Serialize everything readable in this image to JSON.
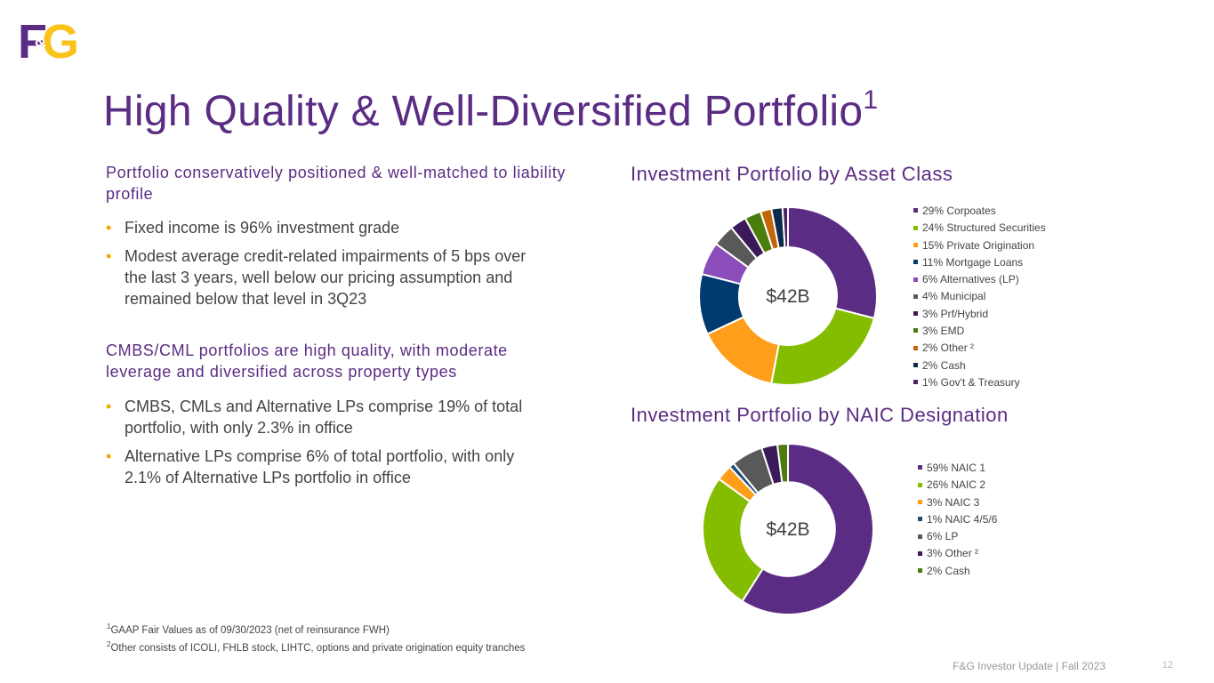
{
  "logo": {
    "text": "F&G",
    "left_letter": "F",
    "amp": "&",
    "right_letter": "G",
    "colors": {
      "purple": "#5B2C83",
      "gold": "#F9C31A"
    }
  },
  "title": {
    "text": "High Quality & Well-Diversified Portfolio",
    "sup": "1"
  },
  "left": {
    "section1": {
      "heading": "Portfolio conservatively positioned & well-matched to liability profile",
      "bullets": [
        "Fixed income is 96% investment grade",
        "Modest average credit-related impairments of 5 bps over the last 3 years, well below our pricing assumption and remained below that level in 3Q23"
      ]
    },
    "section2": {
      "heading": "CMBS/CML portfolios are high quality, with moderate leverage and diversified across property types",
      "bullets": [
        "CMBS, CMLs and Alternative LPs comprise 19% of total portfolio, with only 2.3% in office",
        "Alternative LPs comprise 6% of total portfolio, with only 2.1% of Alternative LPs portfolio in office"
      ]
    },
    "bullet_glyph": "•"
  },
  "chart_data": [
    {
      "type": "pie",
      "title": "Investment Portfolio by Asset Class",
      "center_label": "$42B",
      "categories": [
        "29% Corpoates",
        "24% Structured Securities",
        "15% Private Origination",
        "11% Mortgage Loans",
        "6% Alternatives (LP)",
        "4% Municipal",
        "3% Prf/Hybrid",
        "3% EMD",
        "2% Other ²",
        "2% Cash",
        "1% Gov't & Treasury"
      ],
      "values": [
        29,
        24,
        15,
        11,
        6,
        4,
        3,
        3,
        2,
        2,
        1
      ],
      "colors": [
        "#5B2C83",
        "#84BD00",
        "#FF9E1B",
        "#003B6F",
        "#8B4DBA",
        "#595959",
        "#3B1A5A",
        "#4A7D0B",
        "#C5650B",
        "#0A2B4C",
        "#4B2266"
      ],
      "legend_position": "right"
    },
    {
      "type": "pie",
      "title": "Investment Portfolio by NAIC Designation",
      "center_label": "$42B",
      "categories": [
        "59% NAIC 1",
        "26% NAIC 2",
        "3% NAIC 3",
        "1% NAIC 4/5/6",
        "6% LP",
        "3% Other ²",
        "2% Cash"
      ],
      "values": [
        59,
        26,
        3,
        1,
        6,
        3,
        2
      ],
      "colors": [
        "#5B2C83",
        "#84BD00",
        "#FF9E1B",
        "#1F4E79",
        "#595959",
        "#3B1A5A",
        "#4A7D0B"
      ],
      "legend_position": "right"
    }
  ],
  "footnotes": [
    {
      "marker": "1",
      "text": "GAAP Fair Values as of 09/30/2023 (net of reinsurance FWH)"
    },
    {
      "marker": "2",
      "text": "Other consists of ICOLI, FHLB stock, LIHTC, options and private origination equity tranches"
    }
  ],
  "footer": {
    "text": "F&G Investor Update | Fall 2023",
    "page": "12"
  }
}
